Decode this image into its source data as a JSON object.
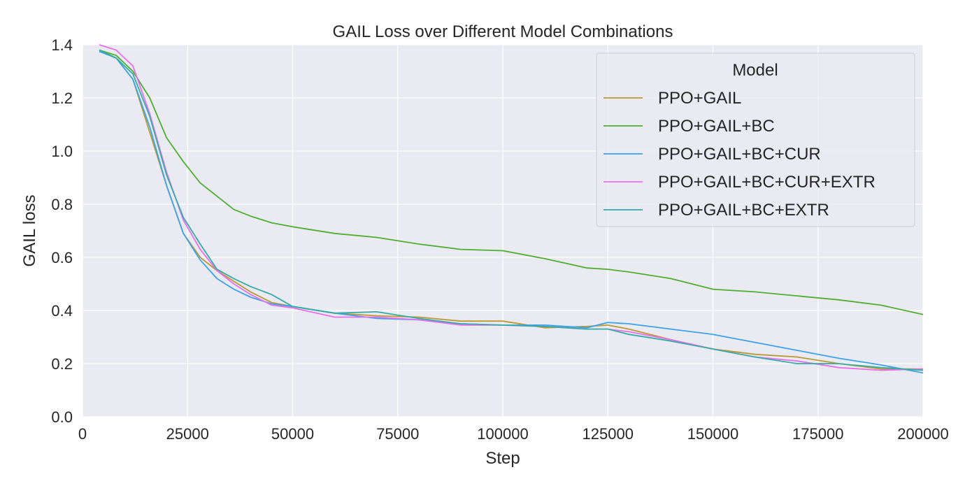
{
  "chart_data": {
    "type": "line",
    "title": "GAIL Loss over Different Model Combinations",
    "xlabel": "Step",
    "ylabel": "GAIL loss",
    "xlim": [
      0,
      200000
    ],
    "ylim": [
      0,
      1.4
    ],
    "xticks": [
      0,
      25000,
      50000,
      75000,
      100000,
      125000,
      150000,
      175000,
      200000
    ],
    "yticks": [
      0.0,
      0.2,
      0.4,
      0.6,
      0.8,
      1.0,
      1.2,
      1.4
    ],
    "grid": true,
    "background": "#eaeaf2",
    "legend": {
      "title": "Model",
      "placement": "top-right"
    },
    "x": [
      4000,
      8000,
      12000,
      16000,
      20000,
      24000,
      28000,
      32000,
      36000,
      40000,
      45000,
      50000,
      60000,
      70000,
      80000,
      90000,
      100000,
      110000,
      120000,
      125000,
      130000,
      140000,
      150000,
      160000,
      170000,
      180000,
      190000,
      200000
    ],
    "series": [
      {
        "name": "PPO+GAIL",
        "color": "#bb9832",
        "values": [
          1.38,
          1.35,
          1.27,
          1.07,
          0.87,
          0.69,
          0.6,
          0.55,
          0.51,
          0.47,
          0.43,
          0.415,
          0.39,
          0.38,
          0.375,
          0.36,
          0.36,
          0.335,
          0.34,
          0.345,
          0.33,
          0.29,
          0.255,
          0.235,
          0.225,
          0.2,
          0.18,
          0.18
        ]
      },
      {
        "name": "PPO+GAIL+BC",
        "color": "#4daf2f",
        "values": [
          1.38,
          1.36,
          1.3,
          1.2,
          1.05,
          0.96,
          0.88,
          0.83,
          0.78,
          0.755,
          0.73,
          0.715,
          0.69,
          0.675,
          0.65,
          0.63,
          0.625,
          0.595,
          0.56,
          0.555,
          0.545,
          0.52,
          0.48,
          0.47,
          0.455,
          0.44,
          0.42,
          0.385
        ]
      },
      {
        "name": "PPO+GAIL+BC+CUR",
        "color": "#3ba3ec",
        "values": [
          1.375,
          1.35,
          1.27,
          1.09,
          0.87,
          0.69,
          0.59,
          0.52,
          0.48,
          0.45,
          0.425,
          0.415,
          0.39,
          0.37,
          0.365,
          0.35,
          0.345,
          0.345,
          0.335,
          0.355,
          0.35,
          0.33,
          0.31,
          0.28,
          0.25,
          0.22,
          0.195,
          0.165
        ]
      },
      {
        "name": "PPO+GAIL+BC+CUR+EXTR",
        "color": "#e96ef0",
        "values": [
          1.4,
          1.38,
          1.32,
          1.14,
          0.92,
          0.74,
          0.63,
          0.55,
          0.5,
          0.46,
          0.42,
          0.41,
          0.375,
          0.375,
          0.365,
          0.345,
          0.345,
          0.34,
          0.33,
          0.33,
          0.32,
          0.29,
          0.255,
          0.225,
          0.21,
          0.185,
          0.175,
          0.18
        ]
      },
      {
        "name": "PPO+GAIL+BC+EXTR",
        "color": "#36ada4",
        "values": [
          1.38,
          1.35,
          1.29,
          1.13,
          0.91,
          0.75,
          0.65,
          0.555,
          0.52,
          0.49,
          0.46,
          0.415,
          0.39,
          0.395,
          0.37,
          0.35,
          0.345,
          0.34,
          0.33,
          0.33,
          0.31,
          0.285,
          0.255,
          0.225,
          0.2,
          0.2,
          0.185,
          0.175
        ]
      }
    ]
  }
}
